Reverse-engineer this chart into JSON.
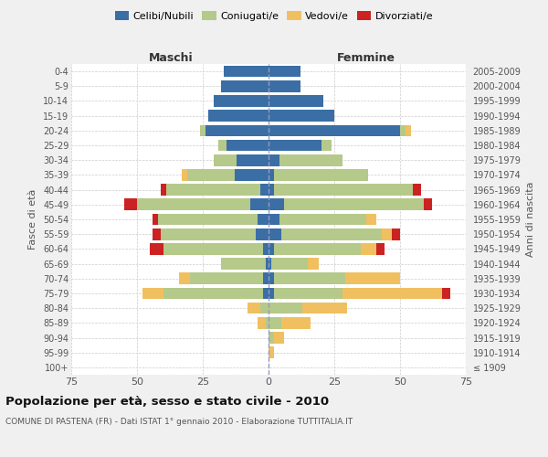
{
  "age_groups": [
    "100+",
    "95-99",
    "90-94",
    "85-89",
    "80-84",
    "75-79",
    "70-74",
    "65-69",
    "60-64",
    "55-59",
    "50-54",
    "45-49",
    "40-44",
    "35-39",
    "30-34",
    "25-29",
    "20-24",
    "15-19",
    "10-14",
    "5-9",
    "0-4"
  ],
  "birth_years": [
    "≤ 1909",
    "1910-1914",
    "1915-1919",
    "1920-1924",
    "1925-1929",
    "1930-1934",
    "1935-1939",
    "1940-1944",
    "1945-1949",
    "1950-1954",
    "1955-1959",
    "1960-1964",
    "1965-1969",
    "1970-1974",
    "1975-1979",
    "1980-1984",
    "1985-1989",
    "1990-1994",
    "1995-1999",
    "2000-2004",
    "2005-2009"
  ],
  "maschi_celibe": [
    0,
    0,
    0,
    0,
    0,
    2,
    2,
    1,
    2,
    5,
    4,
    7,
    3,
    13,
    12,
    16,
    24,
    23,
    21,
    18,
    17
  ],
  "maschi_coniugato": [
    0,
    0,
    0,
    1,
    3,
    38,
    28,
    17,
    38,
    36,
    38,
    43,
    36,
    18,
    9,
    3,
    2,
    0,
    0,
    0,
    0
  ],
  "maschi_vedovo": [
    0,
    0,
    0,
    3,
    5,
    8,
    4,
    0,
    0,
    0,
    0,
    0,
    0,
    2,
    0,
    0,
    0,
    0,
    0,
    0,
    0
  ],
  "maschi_divorziato": [
    0,
    0,
    0,
    0,
    0,
    0,
    0,
    0,
    5,
    3,
    2,
    5,
    2,
    0,
    0,
    0,
    0,
    0,
    0,
    0,
    0
  ],
  "femmine_celibe": [
    0,
    0,
    0,
    0,
    0,
    2,
    2,
    1,
    2,
    5,
    4,
    6,
    2,
    2,
    4,
    20,
    50,
    25,
    21,
    12,
    12
  ],
  "femmine_coniugato": [
    0,
    0,
    2,
    5,
    13,
    26,
    27,
    14,
    33,
    38,
    33,
    53,
    53,
    36,
    24,
    4,
    2,
    0,
    0,
    0,
    0
  ],
  "femmine_vedovo": [
    0,
    2,
    4,
    11,
    17,
    38,
    21,
    4,
    6,
    4,
    4,
    0,
    0,
    0,
    0,
    0,
    2,
    0,
    0,
    0,
    0
  ],
  "femmine_divorziato": [
    0,
    0,
    0,
    0,
    0,
    3,
    0,
    0,
    3,
    3,
    0,
    3,
    3,
    0,
    0,
    0,
    0,
    0,
    0,
    0,
    0
  ],
  "colors": {
    "celibe": "#3a6ea5",
    "coniugato": "#b5c98a",
    "vedovo": "#f0c060",
    "divorziato": "#cc2222"
  },
  "xlim": 75,
  "title": "Popolazione per età, sesso e stato civile - 2010",
  "subtitle": "COMUNE DI PASTENA (FR) - Dati ISTAT 1° gennaio 2010 - Elaborazione TUTTITALIA.IT",
  "ylabel_left": "Fasce di età",
  "ylabel_right": "Anni di nascita",
  "label_maschi": "Maschi",
  "label_femmine": "Femmine",
  "legend_labels": [
    "Celibi/Nubili",
    "Coniugati/e",
    "Vedovi/e",
    "Divorziati/e"
  ],
  "bg_color": "#f0f0f0",
  "plot_bg_color": "#ffffff"
}
